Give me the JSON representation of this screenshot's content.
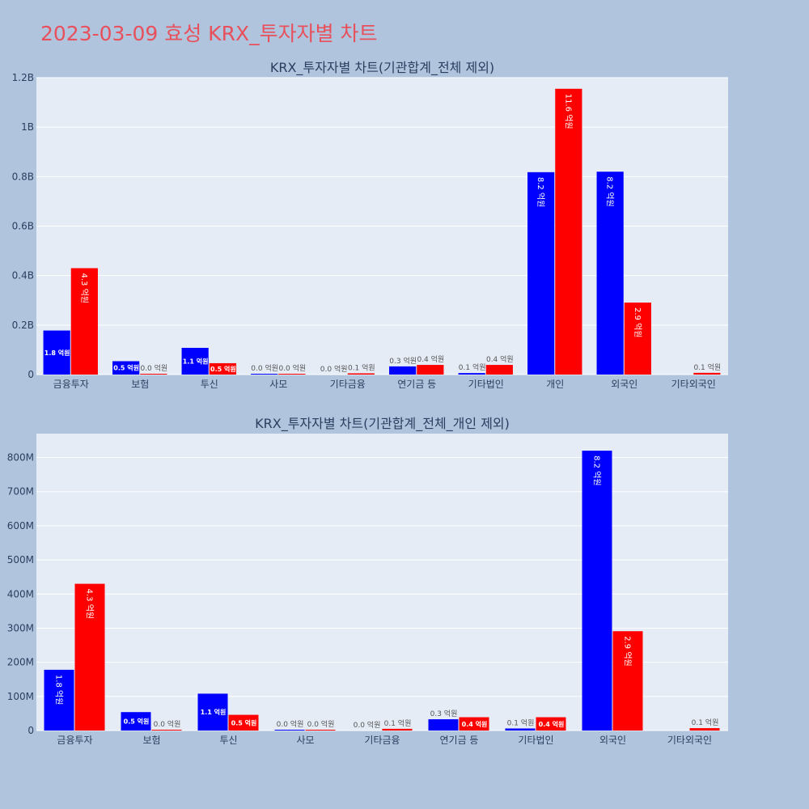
{
  "page_title": "2023-03-09 효성 KRX_투자자별 차트",
  "colors": {
    "buy": "#0000ff",
    "sell": "#ff0000",
    "plot_bg": "#e5ecf6",
    "page_bg": "#b0c4de",
    "title": "#e8505b"
  },
  "chart_data": [
    {
      "type": "bar",
      "title": "KRX_투자자별 차트(기관합계_전체 제외)",
      "categories": [
        "금융투자",
        "보험",
        "투신",
        "사모",
        "기타금융",
        "연기금 등",
        "기타법인",
        "개인",
        "외국인",
        "기타외국인"
      ],
      "yticks": [
        0,
        200000000,
        400000000,
        600000000,
        800000000,
        1000000000,
        1200000000
      ],
      "ytick_labels": [
        "0",
        "0.2B",
        "0.4B",
        "0.6B",
        "0.8B",
        "1B",
        "1.2B"
      ],
      "ylim": [
        0,
        1200000000
      ],
      "grid": true,
      "series": [
        {
          "color": "#0000ff",
          "values": [
            178000000,
            54000000,
            108000000,
            2000000,
            0,
            33000000,
            6000000,
            818000000,
            820000000,
            0
          ],
          "labels": [
            "1.8 억원",
            "0.5 억원",
            "1.1 억원",
            "0.0 억원",
            "0.0 억원",
            "0.3 억원",
            "0.1 억원",
            "8.2 억원",
            "8.2 억원",
            ""
          ]
        },
        {
          "color": "#ff0000",
          "values": [
            430000000,
            2000000,
            46000000,
            2000000,
            5000000,
            39000000,
            39000000,
            1155000000,
            291000000,
            7000000
          ],
          "labels": [
            "4.3 억원",
            "0.0 억원",
            "0.5 억원",
            "0.0 억원",
            "0.1 억원",
            "0.4 억원",
            "0.4 억원",
            "11.6 억원",
            "2.9 억원",
            "0.1 억원"
          ]
        }
      ]
    },
    {
      "type": "bar",
      "title": "KRX_투자자별 차트(기관합계_전체_개인 제외)",
      "categories": [
        "금융투자",
        "보험",
        "투신",
        "사모",
        "기타금융",
        "연기금 등",
        "기타법인",
        "외국인",
        "기타외국인"
      ],
      "yticks": [
        0,
        100000000,
        200000000,
        300000000,
        400000000,
        500000000,
        600000000,
        700000000,
        800000000
      ],
      "ytick_labels": [
        "0",
        "100M",
        "200M",
        "300M",
        "400M",
        "500M",
        "600M",
        "700M",
        "800M"
      ],
      "ylim": [
        0,
        870000000
      ],
      "grid": true,
      "series": [
        {
          "color": "#0000ff",
          "values": [
            178000000,
            54000000,
            108000000,
            2000000,
            0,
            33000000,
            6000000,
            820000000,
            0
          ],
          "labels": [
            "1.8 억원",
            "0.5 억원",
            "1.1 억원",
            "0.0 억원",
            "0.0 억원",
            "0.3 억원",
            "0.1 억원",
            "8.2 억원",
            ""
          ]
        },
        {
          "color": "#ff0000",
          "values": [
            430000000,
            2000000,
            46000000,
            2000000,
            5000000,
            39000000,
            39000000,
            291000000,
            7000000
          ],
          "labels": [
            "4.3 억원",
            "0.0 억원",
            "0.5 억원",
            "0.0 억원",
            "0.1 억원",
            "0.4 억원",
            "0.4 억원",
            "2.9 억원",
            "0.1 억원"
          ]
        }
      ]
    }
  ]
}
